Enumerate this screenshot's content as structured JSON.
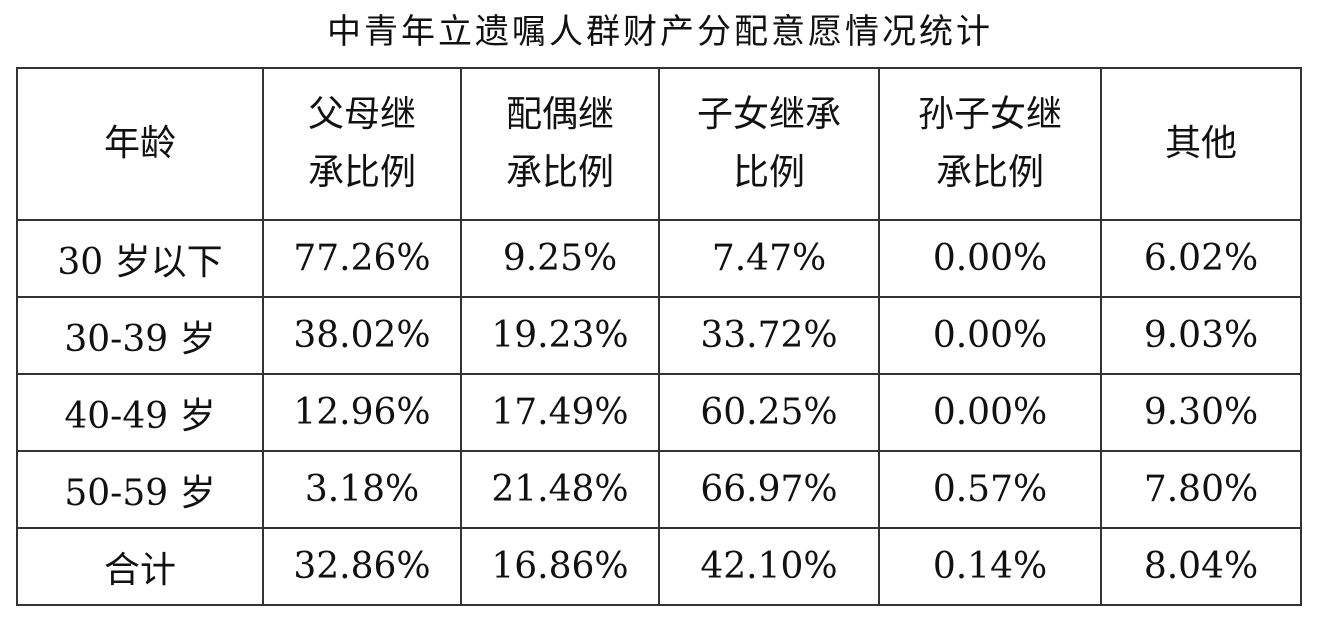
{
  "title": "中青年立遗嘱人群财产分配意愿情况统计",
  "headers": [
    "年龄",
    "父母继承比例",
    "配偶继承比例",
    "子女继承比例",
    "孙子女继承比例",
    "其他"
  ],
  "header_lines": [
    [
      "年龄"
    ],
    [
      "父母继",
      "承比例"
    ],
    [
      "配偶继",
      "承比例"
    ],
    [
      "子女继承",
      "比例"
    ],
    [
      "孙子女继",
      "承比例"
    ],
    [
      "其他"
    ]
  ],
  "rows": [
    [
      "30 岁以下",
      "77.26%",
      "9.25%",
      "7.47%",
      "0.00%",
      "6.02%"
    ],
    [
      "30-39 岁",
      "38.02%",
      "19.23%",
      "33.72%",
      "0.00%",
      "9.03%"
    ],
    [
      "40-49 岁",
      "12.96%",
      "17.49%",
      "60.25%",
      "0.00%",
      "9.30%"
    ],
    [
      "50-59 岁",
      "3.18%",
      "21.48%",
      "66.97%",
      "0.57%",
      "7.80%"
    ],
    [
      "合计",
      "32.86%",
      "16.86%",
      "42.10%",
      "0.14%",
      "8.04%"
    ]
  ]
}
